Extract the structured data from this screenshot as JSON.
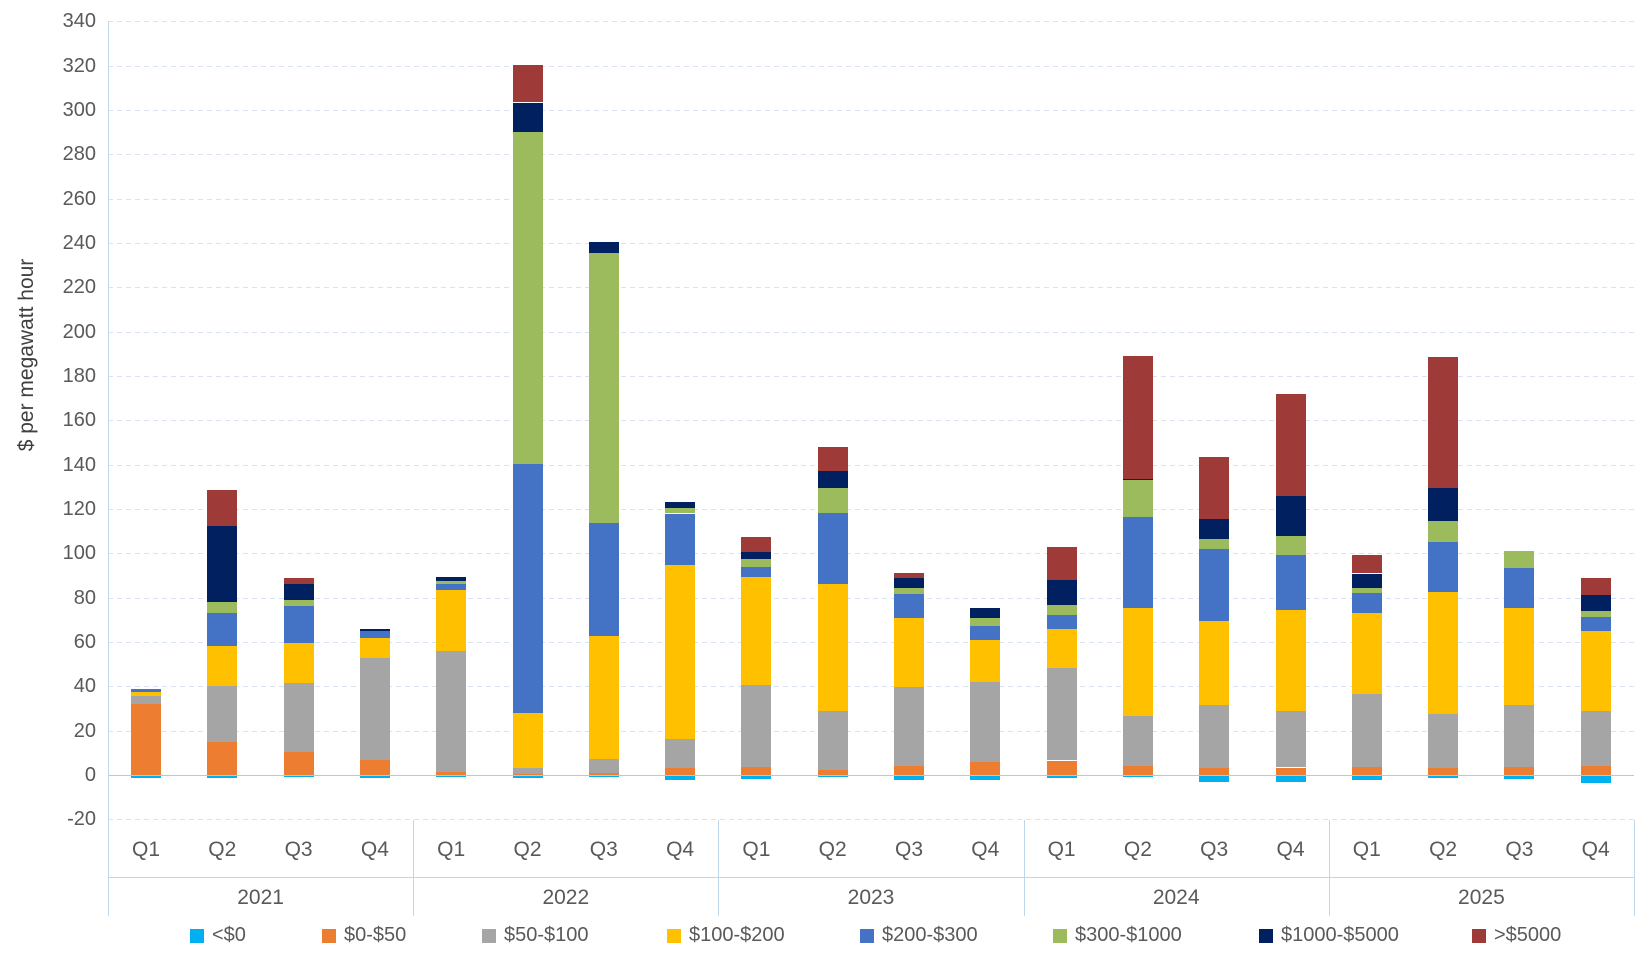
{
  "chart_data": {
    "type": "bar",
    "stacked": true,
    "title": "",
    "xlabel": "",
    "ylabel": "$ per megawatt hour",
    "ylim": [
      -20,
      340
    ],
    "ytick_step": 20,
    "yticks": [
      340,
      320,
      300,
      280,
      260,
      240,
      220,
      200,
      180,
      160,
      140,
      120,
      100,
      80,
      60,
      40,
      20,
      0,
      -20
    ],
    "grid": true,
    "legend_position": "bottom",
    "years": [
      "2021",
      "2022",
      "2023",
      "2024",
      "2025"
    ],
    "quarters": [
      "Q1",
      "Q2",
      "Q3",
      "Q4"
    ],
    "categories": [
      "2021 Q1",
      "2021 Q2",
      "2021 Q3",
      "2021 Q4",
      "2022 Q1",
      "2022 Q2",
      "2022 Q3",
      "2022 Q4",
      "2023 Q1",
      "2023 Q2",
      "2023 Q3",
      "2023 Q4",
      "2024 Q1",
      "2024 Q2",
      "2024 Q3",
      "2024 Q4",
      "2025 Q1",
      "2025 Q2",
      "2025 Q3",
      "2025 Q4"
    ],
    "series": [
      {
        "name": "<$0",
        "color": "#00B0F0",
        "values": [
          -1,
          -1,
          -0.5,
          -1,
          -0.5,
          -1,
          -0.5,
          -2,
          -1.5,
          -0.5,
          -2,
          -2,
          -1,
          -0.5,
          -2.5,
          -2.5,
          -2,
          -1,
          -1.5,
          -3
        ]
      },
      {
        "name": "$0-$50",
        "color": "#ED7D31",
        "values": [
          32,
          15,
          10.5,
          7,
          1.5,
          0.5,
          0.7,
          3.2,
          3.5,
          2.3,
          4.2,
          6,
          6.5,
          4.2,
          3.2,
          3.4,
          3.7,
          3.2,
          3.7,
          3.9
        ]
      },
      {
        "name": "$50-$100",
        "color": "#A5A5A5",
        "values": [
          3.8,
          25,
          30.9,
          45.8,
          54.5,
          2.5,
          6.5,
          13,
          37.1,
          26.4,
          35.6,
          36.1,
          41.8,
          22.5,
          28.4,
          25.6,
          32.8,
          24.3,
          28,
          24.8
        ]
      },
      {
        "name": "$100-$200",
        "color": "#FFC000",
        "values": [
          1.8,
          18.3,
          18,
          9.2,
          27.5,
          25.2,
          55.6,
          78.5,
          48.8,
          57.7,
          31,
          18.8,
          17.8,
          48.6,
          37.7,
          45.4,
          36.6,
          54.9,
          43.5,
          36.1
        ]
      },
      {
        "name": "$200-$300",
        "color": "#4472C4",
        "values": [
          1.2,
          14.8,
          17,
          2.8,
          2.5,
          112.1,
          50.7,
          23.3,
          4.6,
          31.8,
          11.1,
          6.4,
          6.1,
          41.2,
          32.6,
          25,
          9,
          22.8,
          18.4,
          6.6
        ]
      },
      {
        "name": "$300-$1000",
        "color": "#9CBB5C",
        "values": [
          0,
          5.1,
          2.6,
          0,
          1.5,
          149.6,
          121.9,
          2.3,
          3.4,
          11.1,
          2.7,
          3.4,
          4.5,
          16.7,
          4.5,
          8.6,
          2.2,
          9.5,
          7.3,
          2.4
        ]
      },
      {
        "name": "$1000-$5000",
        "color": "#002060",
        "values": [
          0,
          34.3,
          7.2,
          1.3,
          2,
          13.5,
          5.1,
          3.1,
          3.3,
          8,
          4.3,
          4.6,
          11.3,
          0.5,
          9.1,
          17.7,
          6.6,
          14.6,
          0,
          7.4
        ]
      },
      {
        "name": ">$5000",
        "color": "#9E3A38",
        "values": [
          0,
          16.1,
          2.5,
          0,
          0,
          17,
          0,
          0,
          6.9,
          10.8,
          2.1,
          0,
          14.7,
          55.5,
          28.2,
          46.2,
          8.5,
          59.4,
          0,
          7.9
        ]
      }
    ]
  },
  "layout_colors": {
    "gridline": "#D9E2F3",
    "axis_line": "#AECBE4",
    "separator_line": "#BFD7EA",
    "tick_text": "#595959",
    "axis_title_text": "#404040"
  }
}
